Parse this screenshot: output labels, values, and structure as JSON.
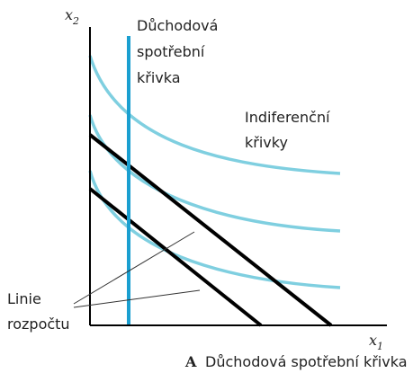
{
  "axes": {
    "y_label": {
      "base": "x",
      "sub": "2"
    },
    "x_label": {
      "base": "x",
      "sub": "1"
    }
  },
  "labels": {
    "income_consumption_curve": [
      "Důchodová",
      "spotřební",
      "křivka"
    ],
    "indifference_curves": [
      "Indiferenční",
      "křivky"
    ],
    "budget_lines": [
      "Linie",
      "rozpočtu"
    ]
  },
  "caption": {
    "letter": "A",
    "text": "Důchodová spotřební křivka"
  }
}
